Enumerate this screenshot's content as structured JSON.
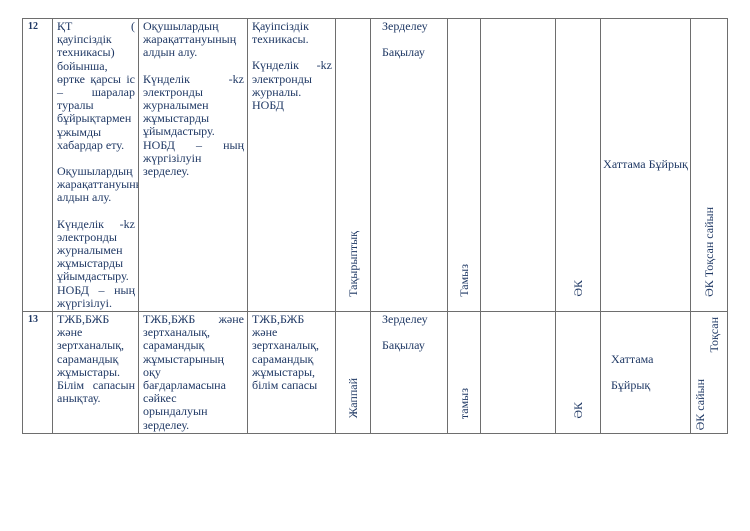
{
  "document": {
    "background": "#ffffff",
    "text_color": "#1f3864",
    "border_color": "#6e6e6e",
    "table": {
      "rows": [
        {
          "number": "12",
          "activity_paragraphs": [
            "ҚТ ( қауіпсіздік техникасы) бойынша, өртке қарсы іс – шаралар туралы бұйрықтармен ұжымды хабардар ету.",
            "",
            "Оқушылардың жарақаттануының алдын алу.",
            "",
            "Күнделік -kz электронды журналымен жұмыстарды ұйымдастыру. НОБД – ның жүргізілуі."
          ],
          "purpose_paragraphs": [
            "Оқушылардың жарақаттануының алдын алу.",
            "",
            "Күнделік -kz электронды журналымен жұмыстарды ұйымдастыру. НОБД – ның жүргізілуін зерделеу."
          ],
          "object_paragraphs": [
            "Қауіпсіздік техникасы.",
            "",
            "Күнделік -kz электронды журналы.",
            "НОБД"
          ],
          "form_vertical": "Тақырыптық",
          "method_paragraphs": [
            "Зерделеу",
            "",
            "Бақылау"
          ],
          "month_vertical": "Тамыз",
          "empty_cell": "",
          "responsible_vertical": "ӘК",
          "outcome": "Хаттама Бұйрық",
          "period_vertical": "ӘК Тоқсан сайын"
        },
        {
          "number": "13",
          "activity_paragraphs": [
            "ТЖБ,БЖБ және зертханалық, сарамандық жұмыстары. Білім сапасын анықтау."
          ],
          "purpose_paragraphs": [
            "ТЖБ,БЖБ және зертханалық, сарамандық жұмыстарының оқу бағдарламасына сәйкес орындалуын зерделеу."
          ],
          "object_paragraphs": [
            "ТЖБ,БЖБ және зертханалық, сарамандық жұмыстары, білім сапасы"
          ],
          "form_vertical": "Жаппай",
          "method_paragraphs": [
            "Зерделеу",
            "",
            "Бақылау"
          ],
          "month_vertical": "тамыз",
          "empty_cell": "",
          "responsible_vertical": "ӘК",
          "outcome_paragraphs": [
            "Хаттама",
            "",
            "Бұйрық"
          ],
          "period_vertical_top": "Тоқсан",
          "period_vertical_bottom": "ӘК сайын"
        }
      ]
    }
  }
}
